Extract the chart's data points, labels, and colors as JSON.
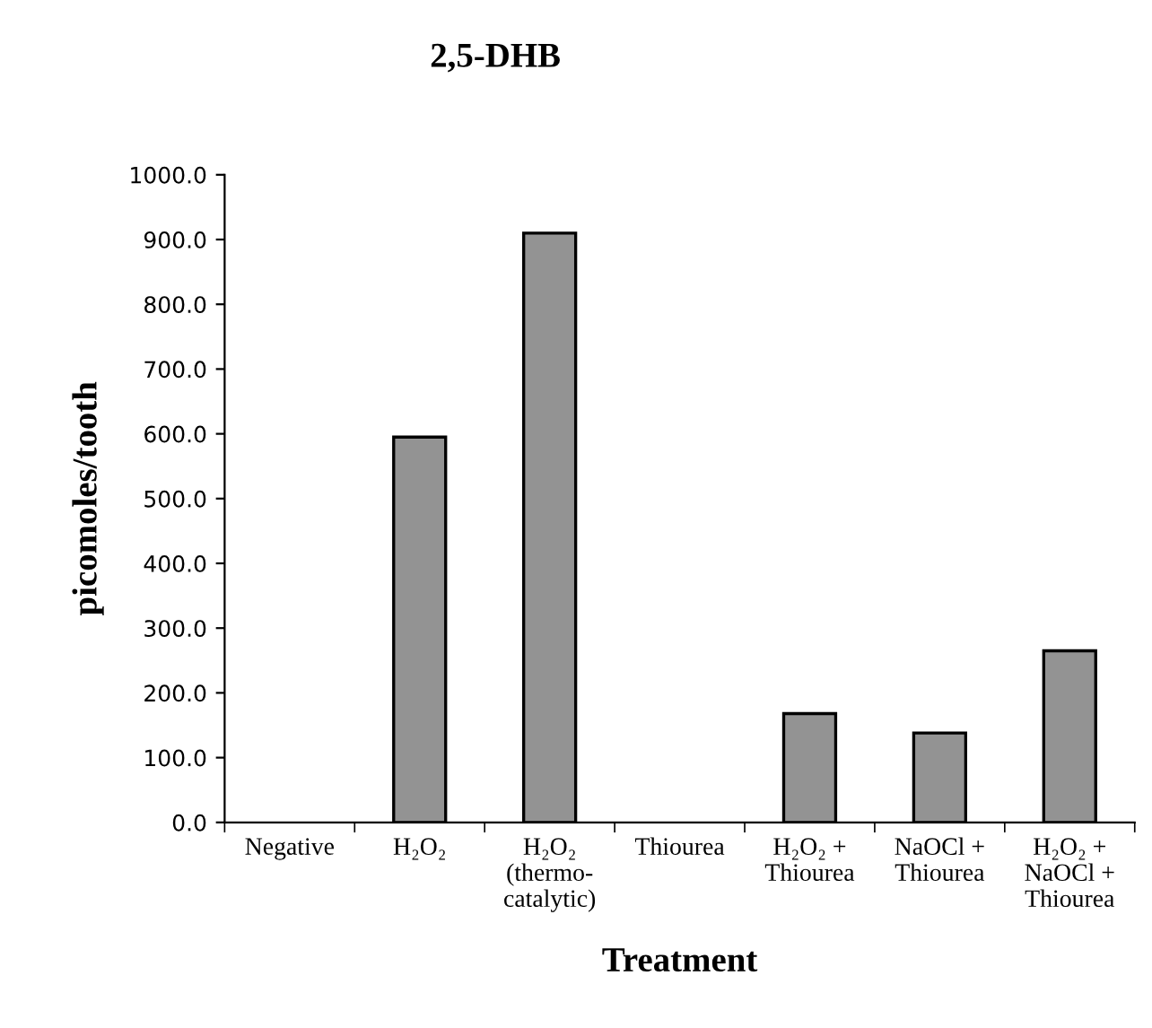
{
  "chart_data": {
    "type": "bar",
    "title": "2,5-DHB",
    "xlabel": "Treatment",
    "ylabel": "picomoles/tooth",
    "categories": [
      "Negative",
      "H₂O₂",
      "H₂O₂\n(thermo-\ncatalytic)",
      "Thiourea",
      "H₂O₂ +\nThiourea",
      "NaOCl +\nThiourea",
      "H₂O₂ +\nNaOCl +\nThiourea"
    ],
    "values": [
      0,
      595,
      910,
      0,
      168,
      138,
      265
    ],
    "color": "#939393",
    "ylim": [
      0,
      1000
    ],
    "yticks": [
      {
        "value": 0,
        "label": "0.0"
      },
      {
        "value": 100,
        "label": "100.0"
      },
      {
        "value": 200,
        "label": "200.0"
      },
      {
        "value": 300,
        "label": "300.0"
      },
      {
        "value": 400,
        "label": "400.0"
      },
      {
        "value": 500,
        "label": "500.0"
      },
      {
        "value": 600,
        "label": "600.0"
      },
      {
        "value": 700,
        "label": "700.0"
      },
      {
        "value": 800,
        "label": "800.0"
      },
      {
        "value": 900,
        "label": "900.0"
      },
      {
        "value": 1000,
        "label": "1000.0"
      }
    ],
    "grid": false,
    "legend": false
  }
}
